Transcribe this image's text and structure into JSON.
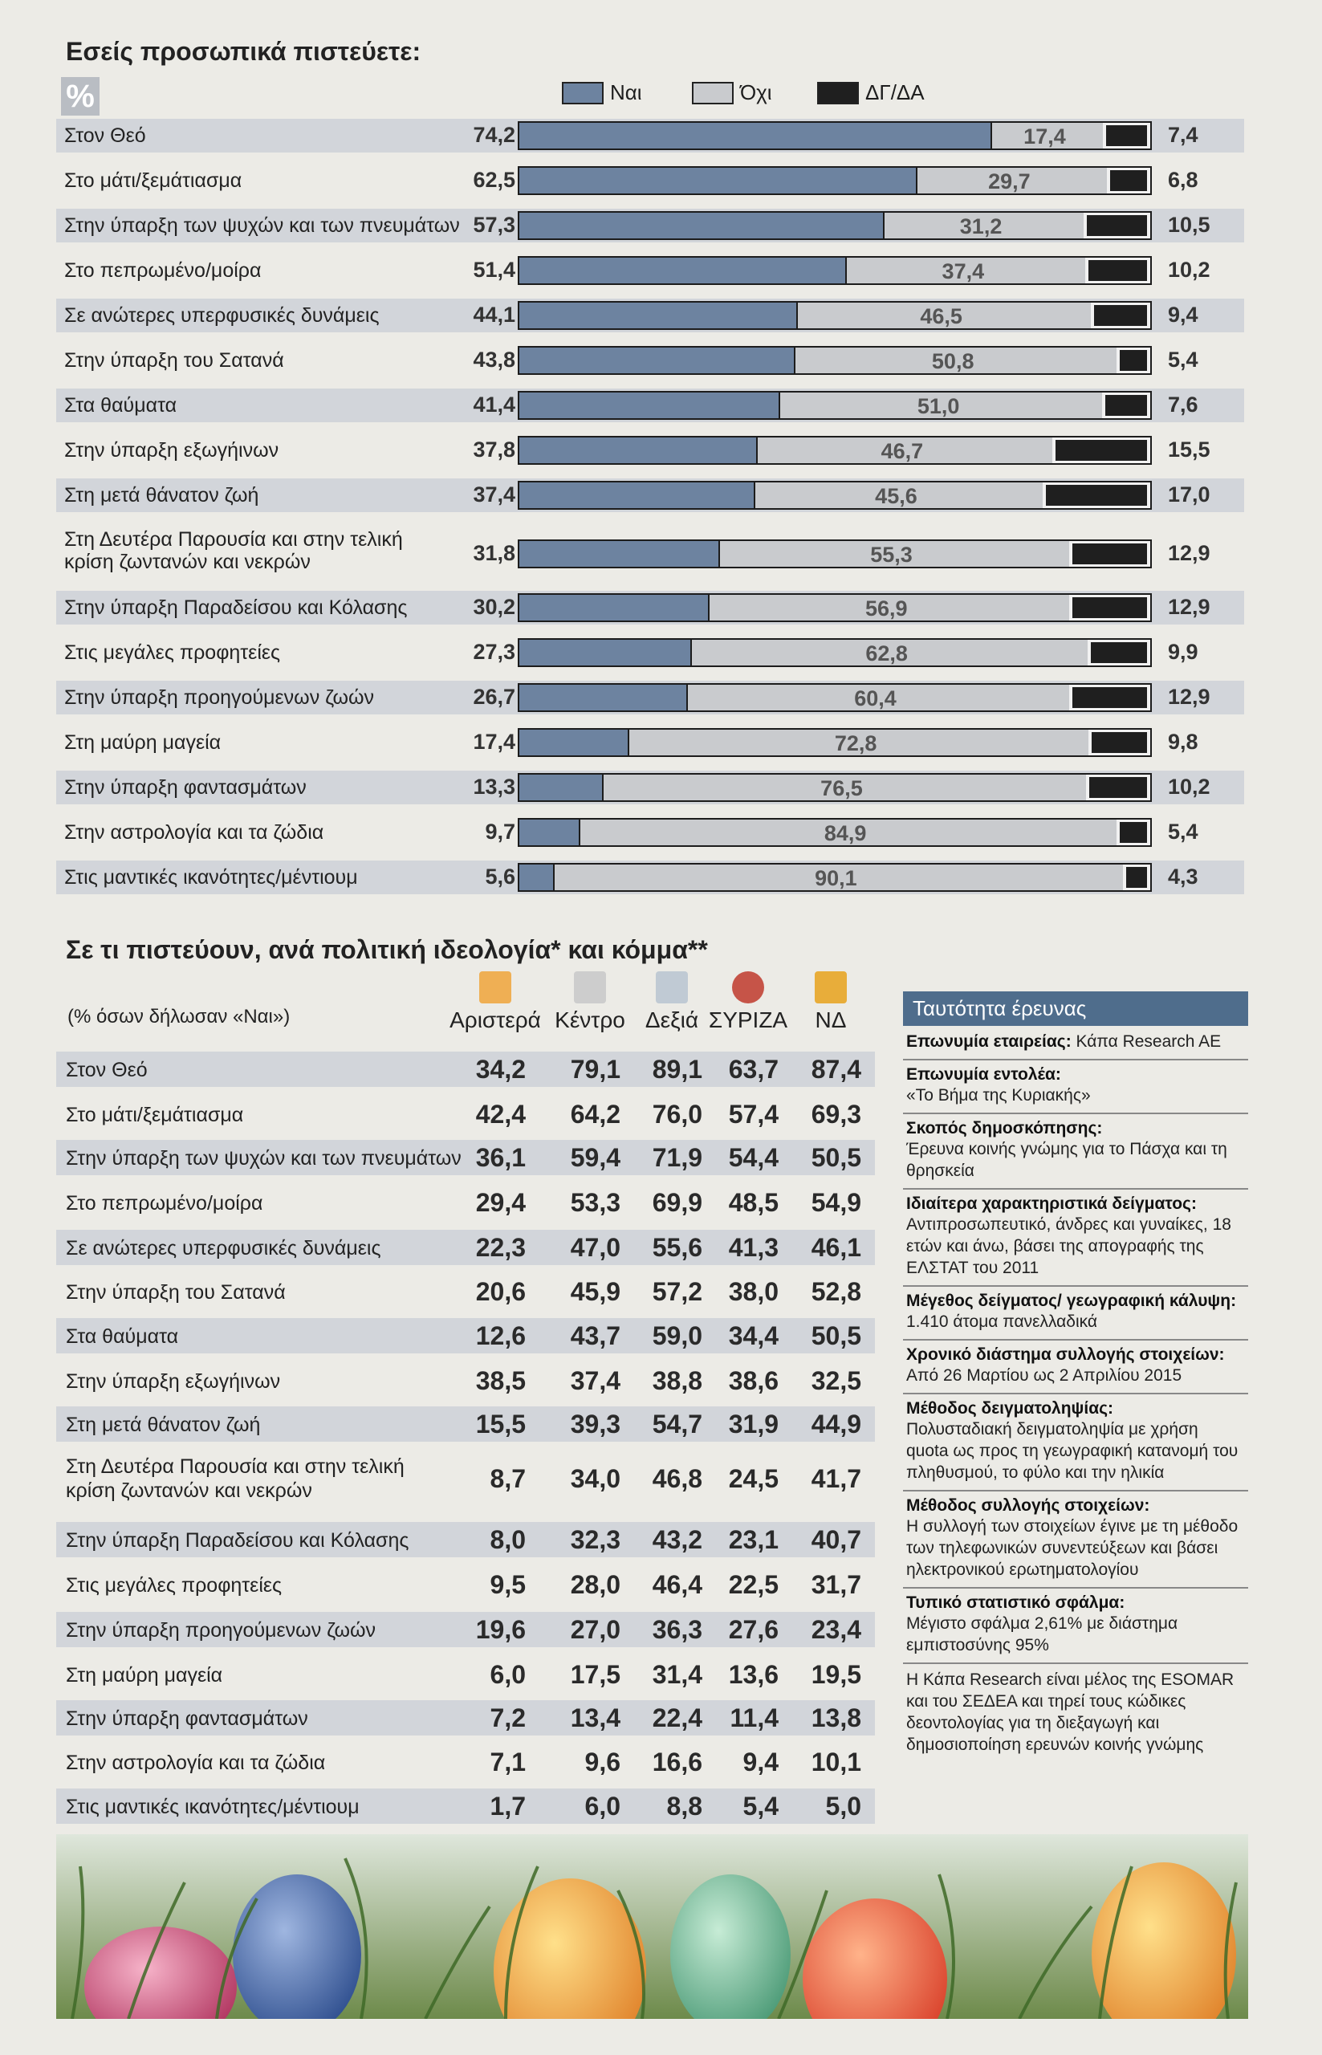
{
  "section1": {
    "title": "Εσείς προσωπικά πιστεύετε:",
    "badge": "%",
    "legend": [
      {
        "label": "Ναι",
        "color": "#6d83a0"
      },
      {
        "label": "Όχι",
        "color": "#c9cbce"
      },
      {
        "label": "ΔΓ/ΔΑ",
        "color": "#1f1f1f"
      }
    ]
  },
  "chart_data": [
    {
      "type": "bar",
      "orientation": "horizontal-stacked",
      "series": [
        {
          "name": "Ναι",
          "values": [
            74.2,
            62.5,
            57.3,
            51.4,
            44.1,
            43.8,
            41.4,
            37.8,
            37.4,
            31.8,
            30.2,
            27.3,
            26.7,
            17.4,
            13.3,
            9.7,
            5.6
          ]
        },
        {
          "name": "Όχι",
          "values": [
            17.4,
            29.7,
            31.2,
            37.4,
            46.5,
            50.8,
            51.0,
            46.7,
            45.6,
            55.3,
            56.9,
            62.8,
            60.4,
            72.8,
            76.5,
            84.9,
            90.1
          ]
        },
        {
          "name": "ΔΓ/ΔΑ",
          "values": [
            7.4,
            6.8,
            10.5,
            10.2,
            9.4,
            5.4,
            7.6,
            15.5,
            17.0,
            12.9,
            12.9,
            9.9,
            12.9,
            9.8,
            10.2,
            5.4,
            4.3
          ]
        }
      ],
      "categories": [
        "Στον Θεό",
        "Στο μάτι/ξεμάτιασμα",
        "Στην ύπαρξη των ψυχών και των πνευμάτων",
        "Στο πεπρωμένο/μοίρα",
        "Σε ανώτερες υπερφυσικές δυνάμεις",
        "Στην ύπαρξη του Σατανά",
        "Στα θαύματα",
        "Στην ύπαρξη εξωγήινων",
        "Στη μετά θάνατον ζωή",
        "Στη Δευτέρα Παρουσία και στην τελική κρίση ζωντανών και νεκρών",
        "Στην ύπαρξη Παραδείσου και Κόλασης",
        "Στις μεγάλες προφητείες",
        "Στην ύπαρξη προηγούμενων ζωών",
        "Στη μαύρη μαγεία",
        "Στην ύπαρξη φαντασμάτων",
        "Στην αστρολογία και τα ζώδια",
        "Στις μαντικές ικανότητες/μέντιουμ"
      ],
      "labels_two_line": [
        "Στη Δευτέρα Παρουσία και στην τελική",
        "κρίση ζωντανών και νεκρών"
      ],
      "xlim": [
        0,
        100
      ],
      "title": "Εσείς προσωπικά πιστεύετε:"
    },
    {
      "type": "table",
      "title": "Σε τι πιστεύουν, ανά πολιτική ιδεολογία* και κόμμα**",
      "subtitle": "(% όσων δήλωσαν «Ναι»)",
      "columns": [
        "Αριστερά",
        "Κέντρο",
        "Δεξιά",
        "ΣΥΡΙΖΑ",
        "ΝΔ"
      ],
      "rows": [
        {
          "label": "Στον Θεό",
          "values": [
            "34,2",
            "79,1",
            "89,1",
            "63,7",
            "87,4"
          ]
        },
        {
          "label": "Στο μάτι/ξεμάτιασμα",
          "values": [
            "42,4",
            "64,2",
            "76,0",
            "57,4",
            "69,3"
          ]
        },
        {
          "label": "Στην ύπαρξη των ψυχών και των πνευμάτων",
          "values": [
            "36,1",
            "59,4",
            "71,9",
            "54,4",
            "50,5"
          ]
        },
        {
          "label": "Στο πεπρωμένο/μοίρα",
          "values": [
            "29,4",
            "53,3",
            "69,9",
            "48,5",
            "54,9"
          ]
        },
        {
          "label": "Σε ανώτερες υπερφυσικές δυνάμεις",
          "values": [
            "22,3",
            "47,0",
            "55,6",
            "41,3",
            "46,1"
          ]
        },
        {
          "label": "Στην ύπαρξη του Σατανά",
          "values": [
            "20,6",
            "45,9",
            "57,2",
            "38,0",
            "52,8"
          ]
        },
        {
          "label": "Στα θαύματα",
          "values": [
            "12,6",
            "43,7",
            "59,0",
            "34,4",
            "50,5"
          ]
        },
        {
          "label": "Στην ύπαρξη εξωγήινων",
          "values": [
            "38,5",
            "37,4",
            "38,8",
            "38,6",
            "32,5"
          ]
        },
        {
          "label": "Στη μετά θάνατον ζωή",
          "values": [
            "15,5",
            "39,3",
            "54,7",
            "31,9",
            "44,9"
          ]
        },
        {
          "label": "Στη Δευτέρα Παρουσία και στην τελική κρίση ζωντανών και νεκρών",
          "values": [
            "8,7",
            "34,0",
            "46,8",
            "24,5",
            "41,7"
          ]
        },
        {
          "label": "Στην ύπαρξη Παραδείσου και Κόλασης",
          "values": [
            "8,0",
            "32,3",
            "43,2",
            "23,1",
            "40,7"
          ]
        },
        {
          "label": "Στις μεγάλες προφητείες",
          "values": [
            "9,5",
            "28,0",
            "46,4",
            "22,5",
            "31,7"
          ]
        },
        {
          "label": "Στην ύπαρξη προηγούμενων ζωών",
          "values": [
            "19,6",
            "27,0",
            "36,3",
            "27,6",
            "23,4"
          ]
        },
        {
          "label": "Στη μαύρη μαγεία",
          "values": [
            "6,0",
            "17,5",
            "31,4",
            "13,6",
            "19,5"
          ]
        },
        {
          "label": "Στην ύπαρξη φαντασμάτων",
          "values": [
            "7,2",
            "13,4",
            "22,4",
            "11,4",
            "13,8"
          ]
        },
        {
          "label": "Στην αστρολογία και τα ζώδια",
          "values": [
            "7,1",
            "9,6",
            "16,6",
            "9,4",
            "10,1"
          ]
        },
        {
          "label": "Στις μαντικές ικανότητες/μέντιουμ",
          "values": [
            "1,7",
            "6,0",
            "8,8",
            "5,4",
            "5,0"
          ]
        }
      ]
    }
  ],
  "section2": {
    "title": "Σε τι πιστεύουν, ανά πολιτική ιδεολογία* και κόμμα**",
    "subtitle": "(% όσων δήλωσαν «Ναι»)",
    "party_icons": [
      "left-arrow-icon",
      "center-arrows-icon",
      "right-arrow-icon",
      "syriza-flag-icon",
      "nd-torch-icon"
    ]
  },
  "info": {
    "header": "Ταυτότητα έρευνας",
    "sections": [
      {
        "label": "Επωνυμία εταιρείας:",
        "text": "Κάπα Research AE",
        "inline": true
      },
      {
        "label": "Επωνυμία εντολέα:",
        "text": "«Το Βήμα της Κυριακής»"
      },
      {
        "label": "Σκοπός δημοσκόπησης:",
        "text": "Έρευνα κοινής γνώμης για το Πάσχα και τη θρησκεία"
      },
      {
        "label": "Ιδιαίτερα χαρακτηριστικά δείγματος:",
        "text": "Αντιπροσωπευτικό, άνδρες και γυναίκες, 18 ετών και άνω, βάσει της απογραφής της ΕΛΣΤΑΤ του 2011"
      },
      {
        "label": "Μέγεθος δείγματος/ γεωγραφική κάλυψη:",
        "text": "1.410 άτομα πανελλαδικά"
      },
      {
        "label": "Χρονικό διάστημα συλλογής στοιχείων:",
        "text": "Από 26 Μαρτίου ως 2 Απριλίου 2015"
      },
      {
        "label": "Μέθοδος δειγματοληψίας:",
        "text": "Πολυσταδιακή δειγματοληψία με χρήση quota ως προς τη γεωγραφική κατανομή του πληθυσμού, το φύλο και την ηλικία"
      },
      {
        "label": "Μέθοδος συλλογής στοιχείων:",
        "text": "Η συλλογή των στοιχείων έγινε με τη μέθοδο των τηλεφωνικών συνεντεύξεων και βάσει ηλεκτρονικού ερωτηματολογίου"
      },
      {
        "label": "Τυπικό στατιστικό σφάλμα:",
        "text": "Μέγιστο σφάλμα 2,61% με διάστημα εμπιστοσύνης 95%"
      },
      {
        "label": "",
        "text": "Η Κάπα Research είναι μέλος της ESOMAR και του ΣΕΔΕΑ και τηρεί τους κώδικες δεοντολογίας για τη διεξαγωγή και δημοσιοποίηση ερευνών κοινής γνώμης"
      }
    ]
  },
  "photo": {
    "desc_icon": "easter-eggs-grass-image"
  }
}
